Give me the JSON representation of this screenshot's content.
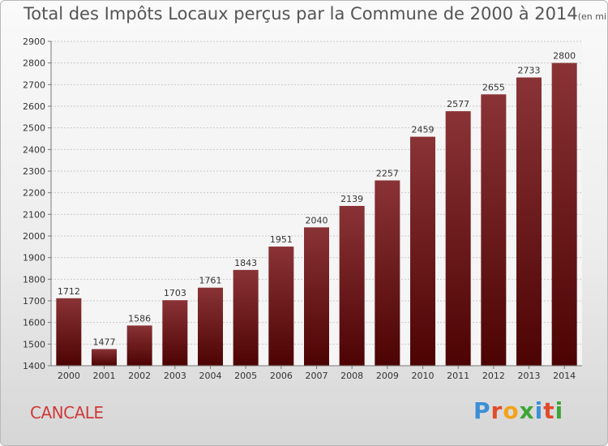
{
  "header": {
    "title": "Total des Impôts Locaux perçus par la Commune de 2000 à 2014",
    "unit": "(en milliers d'€)"
  },
  "footer": {
    "commune": "CANCALE",
    "brand_letters": [
      "P",
      "r",
      "o",
      "x",
      "i",
      "t",
      "i"
    ],
    "brand_colors": [
      "#3b8fd6",
      "#e24a2c",
      "#f2a31a",
      "#3da535",
      "#3b8fd6",
      "#e24a2c",
      "#3da535"
    ]
  },
  "colors": {
    "bar_top": "#8a3336",
    "bar_bottom": "#4d0303",
    "grid": "#c8c8c8",
    "axis": "#777777",
    "text": "#333333"
  },
  "chart_data": {
    "type": "bar",
    "title": "Total des Impôts Locaux perçus par la Commune de 2000 à 2014",
    "xlabel": "",
    "ylabel": "en milliers d'€",
    "categories": [
      "2000",
      "2001",
      "2002",
      "2003",
      "2004",
      "2005",
      "2006",
      "2007",
      "2008",
      "2009",
      "2010",
      "2011",
      "2012",
      "2013",
      "2014"
    ],
    "values": [
      1712,
      1477,
      1586,
      1703,
      1761,
      1843,
      1951,
      2040,
      2139,
      2257,
      2459,
      2577,
      2655,
      2733,
      2800
    ],
    "ylim": [
      1400,
      2900
    ],
    "yticks": [
      1400,
      1500,
      1600,
      1700,
      1800,
      1900,
      2000,
      2100,
      2200,
      2300,
      2400,
      2500,
      2600,
      2700,
      2800,
      2900
    ],
    "grid": true,
    "data_labels": true
  }
}
